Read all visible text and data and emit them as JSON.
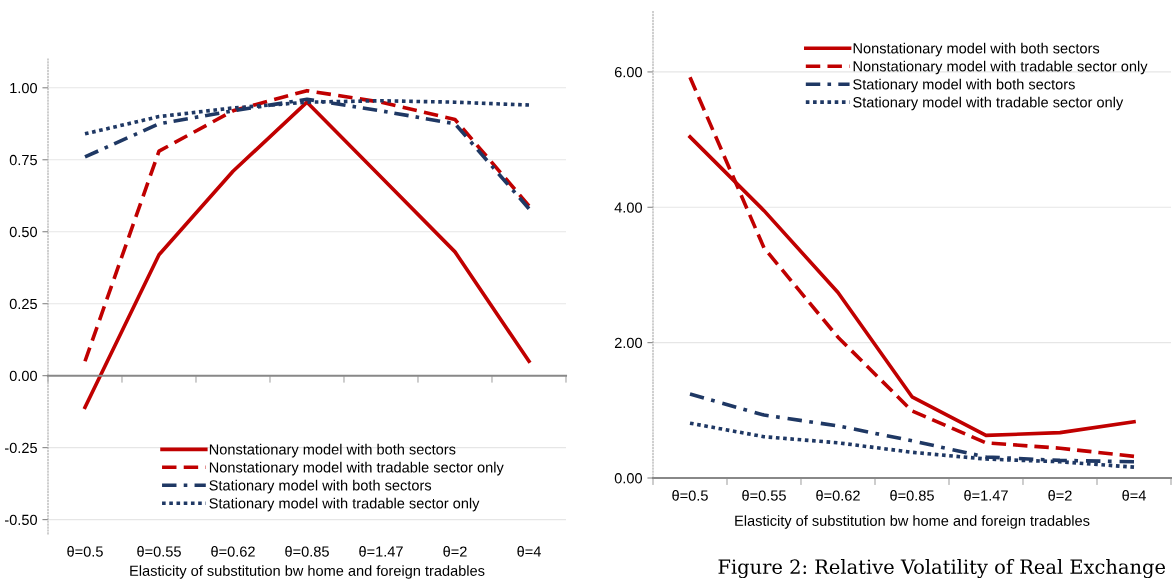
{
  "chart_data": [
    {
      "type": "line",
      "categories": [
        "θ=0.5",
        "θ=0.55",
        "θ=0.62",
        "θ=0.85",
        "θ=1.47",
        "θ=2",
        "θ=4"
      ],
      "xlabel": "Elasticity of substitution bw home and foreign tradables",
      "ylim": [
        -0.55,
        1.1
      ],
      "yticks": [
        {
          "value": -0.5,
          "label": "-0.50"
        },
        {
          "value": -0.25,
          "label": "-0.25"
        },
        {
          "value": 0,
          "label": "0.00"
        },
        {
          "value": 0.25,
          "label": "0.25"
        },
        {
          "value": 0.5,
          "label": "0.50"
        },
        {
          "value": 0.75,
          "label": "0.75"
        },
        {
          "value": 1.0,
          "label": "1.00"
        }
      ],
      "grid": "y",
      "legend": "bottom",
      "series": [
        {
          "name": "Nonstationary model with both sectors",
          "color": "#c00000",
          "line_style": "solid",
          "values": [
            -0.11,
            0.42,
            0.71,
            0.95,
            0.69,
            0.43,
            0.05
          ]
        },
        {
          "name": "Nonstationary model with tradable sector only",
          "color": "#c00000",
          "line_style": "dashed",
          "values": [
            0.05,
            0.78,
            0.92,
            0.99,
            0.95,
            0.89,
            0.59
          ]
        },
        {
          "name": "Stationary model with both sectors",
          "color": "#1f3864",
          "line_style": "dashdot",
          "values": [
            0.76,
            0.875,
            0.92,
            0.96,
            0.92,
            0.875,
            0.58
          ]
        },
        {
          "name": "Stationary model with tradable sector only",
          "color": "#1f3864",
          "line_style": "dotted",
          "values": [
            0.84,
            0.9,
            0.93,
            0.95,
            0.955,
            0.95,
            0.94
          ]
        }
      ]
    },
    {
      "type": "line",
      "categories": [
        "θ=0.5",
        "θ=0.55",
        "θ=0.62",
        "θ=0.85",
        "θ=1.47",
        "θ=2",
        "θ=4"
      ],
      "xlabel": "Elasticity of substitution bw home and foreign tradables",
      "ylim": [
        0,
        6.9
      ],
      "yticks": [
        {
          "value": 0,
          "label": "0.00"
        },
        {
          "value": 2,
          "label": "2.00"
        },
        {
          "value": 4,
          "label": "4.00"
        },
        {
          "value": 6,
          "label": "6.00"
        }
      ],
      "grid": "y",
      "legend": "top right",
      "annotations": [
        "Figure 2: Relative Volatility of Real Exchange"
      ],
      "series": [
        {
          "name": "Nonstationary model with both sectors",
          "color": "#c00000",
          "line_style": "solid",
          "values": [
            5.04,
            3.95,
            2.74,
            1.2,
            0.63,
            0.67,
            0.83
          ]
        },
        {
          "name": "Nonstationary model with tradable sector only",
          "color": "#c00000",
          "line_style": "dashed",
          "values": [
            5.92,
            3.4,
            2.08,
            0.99,
            0.52,
            0.44,
            0.32
          ]
        },
        {
          "name": "Stationary model with both sectors",
          "color": "#1f3864",
          "line_style": "dashdot",
          "values": [
            1.24,
            0.93,
            0.77,
            0.55,
            0.31,
            0.26,
            0.24
          ]
        },
        {
          "name": "Stationary model with tradable sector only",
          "color": "#1f3864",
          "line_style": "dotted",
          "values": [
            0.81,
            0.61,
            0.52,
            0.38,
            0.28,
            0.24,
            0.16
          ]
        }
      ]
    }
  ]
}
